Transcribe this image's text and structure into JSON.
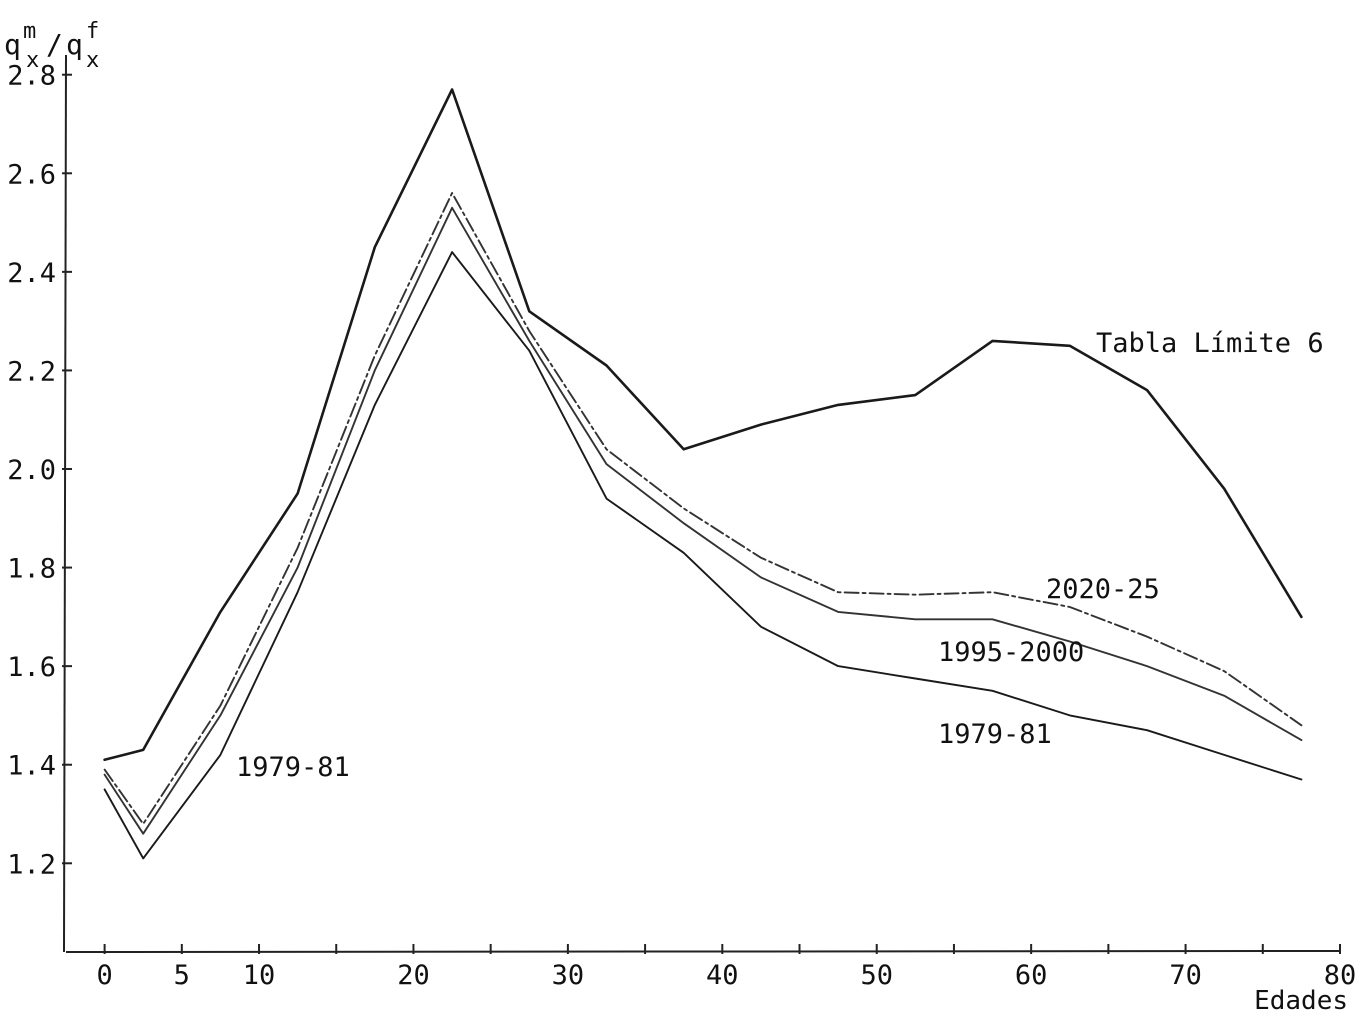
{
  "chart_data": {
    "type": "line",
    "x": [
      0,
      2.5,
      7.5,
      12.5,
      17.5,
      22.5,
      27.5,
      32.5,
      37.5,
      42.5,
      47.5,
      52.5,
      57.5,
      62.5,
      67.5,
      72.5,
      77.5
    ],
    "x_ticks": [
      0,
      5,
      10,
      20,
      30,
      40,
      50,
      60,
      70,
      80
    ],
    "x_minor_ticks": [
      15,
      25,
      35,
      45,
      55,
      65,
      75
    ],
    "y_ticks": [
      "1.2",
      "1.4",
      "1.6",
      "1.8",
      "2.0",
      "2.2",
      "2.4",
      "2.6",
      "2.8"
    ],
    "xlim": [
      -2.5,
      80
    ],
    "ylim": [
      1.02,
      2.84
    ],
    "xlabel": "Edades",
    "ylabel": {
      "main": "q",
      "sup_m": "m",
      "sub_x": "x",
      "slash": "/",
      "sup_f": "f"
    },
    "grid": false,
    "series": [
      {
        "name": "Tabla Límite 6",
        "values": [
          1.41,
          1.43,
          1.71,
          1.95,
          2.45,
          2.77,
          2.32,
          2.21,
          2.04,
          2.09,
          2.13,
          2.15,
          2.26,
          2.25,
          2.16,
          1.96,
          1.7
        ],
        "color": "#1a1a1a",
        "dash": "none"
      },
      {
        "name": "2020-25",
        "values": [
          1.39,
          1.28,
          1.52,
          1.84,
          2.23,
          2.56,
          2.28,
          2.04,
          1.92,
          1.82,
          1.75,
          1.745,
          1.75,
          1.72,
          1.66,
          1.59,
          1.48
        ],
        "color": "#333333",
        "dash": "14 4 3 4"
      },
      {
        "name": "1995-2000",
        "values": [
          1.38,
          1.26,
          1.5,
          1.8,
          2.2,
          2.53,
          2.26,
          2.01,
          1.89,
          1.78,
          1.71,
          1.695,
          1.695,
          1.65,
          1.6,
          1.54,
          1.45
        ],
        "color": "#333333",
        "dash": "none"
      },
      {
        "name": "1979-81",
        "values": [
          1.35,
          1.21,
          1.42,
          1.75,
          2.13,
          2.44,
          2.24,
          1.94,
          1.83,
          1.68,
          1.6,
          1.575,
          1.55,
          1.5,
          1.47,
          1.42,
          1.37
        ],
        "color": "#1a1a1a",
        "dash": "none"
      }
    ],
    "annotations": [
      {
        "text": "Tabla Límite 6"
      },
      {
        "text": "2020-25"
      },
      {
        "text": "1995-2000"
      },
      {
        "text": "1979-81"
      },
      {
        "text": "1979-81"
      }
    ]
  }
}
